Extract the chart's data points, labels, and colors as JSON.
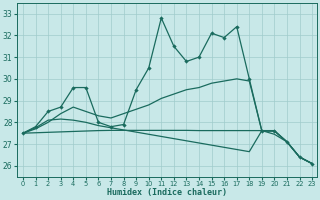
{
  "xlabel": "Humidex (Indice chaleur)",
  "background_color": "#c8e8e8",
  "line_color": "#1a6b5e",
  "grid_color": "#a0cccc",
  "xlim": [
    -0.5,
    23.4
  ],
  "ylim": [
    25.5,
    33.5
  ],
  "yticks": [
    26,
    27,
    28,
    29,
    30,
    31,
    32,
    33
  ],
  "xticks": [
    0,
    1,
    2,
    3,
    4,
    5,
    6,
    7,
    8,
    9,
    10,
    11,
    12,
    13,
    14,
    15,
    16,
    17,
    18,
    19,
    20,
    21,
    22,
    23
  ],
  "main_x": [
    0,
    1,
    2,
    3,
    4,
    5,
    6,
    7,
    8,
    9,
    10,
    11,
    12,
    13,
    14,
    15,
    16,
    17,
    18,
    19,
    20,
    21,
    22,
    23
  ],
  "main_y": [
    27.5,
    27.8,
    28.5,
    28.7,
    29.6,
    29.6,
    28.0,
    27.8,
    27.9,
    29.5,
    30.5,
    32.8,
    31.5,
    30.8,
    31.0,
    32.1,
    31.9,
    32.4,
    30.0,
    27.6,
    27.6,
    27.1,
    26.4,
    26.1
  ],
  "line2_x": [
    0,
    1,
    2,
    3,
    4,
    5,
    6,
    7,
    8,
    9,
    10,
    11,
    12,
    13,
    14,
    15,
    16,
    17,
    18,
    19,
    20,
    21,
    22,
    23
  ],
  "line2_y": [
    27.5,
    27.7,
    28.0,
    28.4,
    28.7,
    28.5,
    28.3,
    28.2,
    28.4,
    28.6,
    28.8,
    29.1,
    29.3,
    29.5,
    29.6,
    29.8,
    29.9,
    30.0,
    29.9,
    27.6,
    27.6,
    27.1,
    26.4,
    26.1
  ],
  "line3_x": [
    0,
    1,
    2,
    3,
    4,
    5,
    6,
    7,
    8,
    9,
    10,
    11,
    12,
    13,
    14,
    15,
    16,
    17,
    18,
    19,
    20,
    21,
    22,
    23
  ],
  "line3_y": [
    27.5,
    27.52,
    27.54,
    27.56,
    27.58,
    27.6,
    27.62,
    27.63,
    27.63,
    27.63,
    27.63,
    27.63,
    27.63,
    27.63,
    27.62,
    27.62,
    27.62,
    27.62,
    27.62,
    27.62,
    27.62,
    27.1,
    26.4,
    26.1
  ],
  "line4_x": [
    0,
    1,
    2,
    3,
    4,
    5,
    6,
    7,
    8,
    9,
    10,
    11,
    12,
    13,
    14,
    15,
    16,
    17,
    18,
    19,
    20,
    21,
    22,
    23
  ],
  "line4_y": [
    27.5,
    27.75,
    28.1,
    28.15,
    28.1,
    28.0,
    27.85,
    27.75,
    27.65,
    27.55,
    27.45,
    27.35,
    27.25,
    27.15,
    27.05,
    26.95,
    26.85,
    26.75,
    26.65,
    27.62,
    27.45,
    27.1,
    26.4,
    26.1
  ]
}
